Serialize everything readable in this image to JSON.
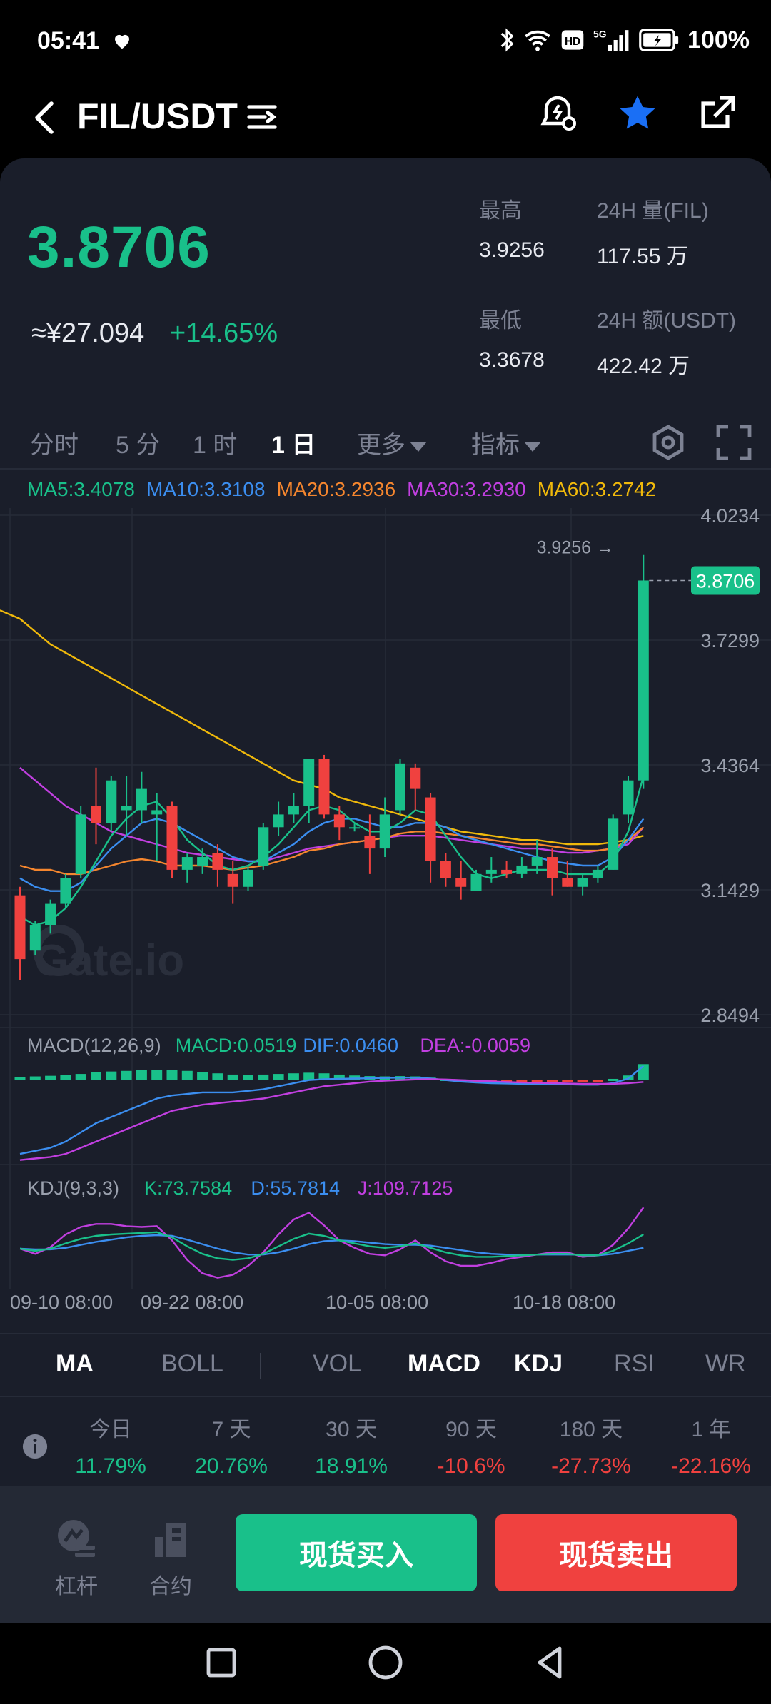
{
  "status_bar": {
    "time": "05:41",
    "battery": "100%",
    "icons": [
      "heart-icon",
      "bluetooth-icon",
      "wifi-icon",
      "hd-icon",
      "5g-signal-icon",
      "battery-icon"
    ]
  },
  "nav": {
    "title": "FIL/USDT",
    "icons": [
      "back-arrow-icon",
      "menu-lines-icon",
      "price-alert-icon",
      "favorite-star-icon",
      "share-icon"
    ],
    "star_color": "#1a6ff5"
  },
  "ticker": {
    "last_price": "3.8706",
    "cny_price": "≈¥27.094",
    "change_pct": "+14.65%",
    "high_label": "最高",
    "high_value": "3.9256",
    "vol_label": "24H 量(FIL)",
    "vol_value": "117.55 万",
    "low_label": "最低",
    "low_value": "3.3678",
    "amount_label": "24H 额(USDT)",
    "amount_value": "422.42 万"
  },
  "timeframes": {
    "tabs": [
      "分时",
      "5 分",
      "1 时",
      "1 日"
    ],
    "active": "1 日",
    "more_label": "更多",
    "indicator_label": "指标"
  },
  "ma_legend": [
    {
      "text": "MA5:3.4078",
      "color": "#19c08a"
    },
    {
      "text": "MA10:3.3108",
      "color": "#3b8ef0"
    },
    {
      "text": "MA20:3.2936",
      "color": "#f5862e"
    },
    {
      "text": "MA30:3.2930",
      "color": "#c13fe0"
    },
    {
      "text": "MA60:3.2742",
      "color": "#f0b90b"
    }
  ],
  "macd_legend": [
    {
      "text": "MACD(12,26,9)",
      "color": "#9aa0ad"
    },
    {
      "text": "MACD:0.0519",
      "color": "#19c08a"
    },
    {
      "text": "DIF:0.0460",
      "color": "#3b8ef0"
    },
    {
      "text": "DEA:-0.0059",
      "color": "#c13fe0"
    }
  ],
  "kdj_legend": [
    {
      "text": "KDJ(9,3,3)",
      "color": "#9aa0ad"
    },
    {
      "text": "K:73.7584",
      "color": "#19c08a"
    },
    {
      "text": "D:55.7814",
      "color": "#3b8ef0"
    },
    {
      "text": "J:109.7125",
      "color": "#c13fe0"
    }
  ],
  "watermark": "Gate.io",
  "chart_data": {
    "type": "candlestick",
    "y_axis_ticks": [
      "4.0234",
      "3.7299",
      "3.4364",
      "3.1429",
      "2.8494"
    ],
    "ylim": [
      2.8494,
      4.0234
    ],
    "x_axis_ticks": [
      "09-10 08:00",
      "09-22 08:00",
      "10-05 08:00",
      "10-18 08:00"
    ],
    "high_marker": "3.9256 →",
    "last_price_tag": "3.8706",
    "candles": [
      {
        "o": 3.13,
        "h": 3.15,
        "l": 2.93,
        "c": 2.98
      },
      {
        "o": 3.0,
        "h": 3.07,
        "l": 2.99,
        "c": 3.06
      },
      {
        "o": 3.06,
        "h": 3.12,
        "l": 3.04,
        "c": 3.11
      },
      {
        "o": 3.11,
        "h": 3.18,
        "l": 3.1,
        "c": 3.17
      },
      {
        "o": 3.18,
        "h": 3.34,
        "l": 3.17,
        "c": 3.32
      },
      {
        "o": 3.34,
        "h": 3.43,
        "l": 3.25,
        "c": 3.3
      },
      {
        "o": 3.3,
        "h": 3.41,
        "l": 3.28,
        "c": 3.4
      },
      {
        "o": 3.33,
        "h": 3.41,
        "l": 3.27,
        "c": 3.34
      },
      {
        "o": 3.33,
        "h": 3.42,
        "l": 3.3,
        "c": 3.38
      },
      {
        "o": 3.32,
        "h": 3.37,
        "l": 3.21,
        "c": 3.33
      },
      {
        "o": 3.34,
        "h": 3.35,
        "l": 3.17,
        "c": 3.19
      },
      {
        "o": 3.19,
        "h": 3.23,
        "l": 3.16,
        "c": 3.22
      },
      {
        "o": 3.2,
        "h": 3.24,
        "l": 3.18,
        "c": 3.22
      },
      {
        "o": 3.23,
        "h": 3.25,
        "l": 3.15,
        "c": 3.19
      },
      {
        "o": 3.18,
        "h": 3.21,
        "l": 3.11,
        "c": 3.15
      },
      {
        "o": 3.15,
        "h": 3.2,
        "l": 3.14,
        "c": 3.19
      },
      {
        "o": 3.2,
        "h": 3.3,
        "l": 3.19,
        "c": 3.29
      },
      {
        "o": 3.29,
        "h": 3.35,
        "l": 3.27,
        "c": 3.32
      },
      {
        "o": 3.32,
        "h": 3.37,
        "l": 3.3,
        "c": 3.34
      },
      {
        "o": 3.34,
        "h": 3.45,
        "l": 3.3,
        "c": 3.45
      },
      {
        "o": 3.45,
        "h": 3.46,
        "l": 3.31,
        "c": 3.32
      },
      {
        "o": 3.32,
        "h": 3.34,
        "l": 3.26,
        "c": 3.29
      },
      {
        "o": 3.29,
        "h": 3.3,
        "l": 3.28,
        "c": 3.29
      },
      {
        "o": 3.27,
        "h": 3.32,
        "l": 3.18,
        "c": 3.24
      },
      {
        "o": 3.24,
        "h": 3.36,
        "l": 3.22,
        "c": 3.32
      },
      {
        "o": 3.33,
        "h": 3.45,
        "l": 3.32,
        "c": 3.44
      },
      {
        "o": 3.43,
        "h": 3.44,
        "l": 3.33,
        "c": 3.38
      },
      {
        "o": 3.36,
        "h": 3.37,
        "l": 3.16,
        "c": 3.21
      },
      {
        "o": 3.21,
        "h": 3.23,
        "l": 3.15,
        "c": 3.17
      },
      {
        "o": 3.17,
        "h": 3.21,
        "l": 3.12,
        "c": 3.15
      },
      {
        "o": 3.14,
        "h": 3.19,
        "l": 3.14,
        "c": 3.18
      },
      {
        "o": 3.18,
        "h": 3.22,
        "l": 3.16,
        "c": 3.19
      },
      {
        "o": 3.19,
        "h": 3.21,
        "l": 3.17,
        "c": 3.18
      },
      {
        "o": 3.18,
        "h": 3.22,
        "l": 3.17,
        "c": 3.2
      },
      {
        "o": 3.2,
        "h": 3.26,
        "l": 3.18,
        "c": 3.22
      },
      {
        "o": 3.22,
        "h": 3.24,
        "l": 3.13,
        "c": 3.17
      },
      {
        "o": 3.17,
        "h": 3.21,
        "l": 3.15,
        "c": 3.15
      },
      {
        "o": 3.15,
        "h": 3.18,
        "l": 3.13,
        "c": 3.17
      },
      {
        "o": 3.17,
        "h": 3.2,
        "l": 3.16,
        "c": 3.19
      },
      {
        "o": 3.19,
        "h": 3.32,
        "l": 3.19,
        "c": 3.31
      },
      {
        "o": 3.32,
        "h": 3.41,
        "l": 3.3,
        "c": 3.4
      },
      {
        "o": 3.4,
        "h": 3.93,
        "l": 3.38,
        "c": 3.87
      }
    ],
    "ma_series": [
      {
        "name": "MA60",
        "color": "#f0b90b",
        "values": [
          3.78,
          3.75,
          3.72,
          3.7,
          3.68,
          3.66,
          3.64,
          3.62,
          3.6,
          3.58,
          3.56,
          3.54,
          3.52,
          3.5,
          3.48,
          3.46,
          3.44,
          3.42,
          3.4,
          3.39,
          3.38,
          3.36,
          3.35,
          3.34,
          3.33,
          3.32,
          3.31,
          3.3,
          3.29,
          3.28,
          3.275,
          3.27,
          3.265,
          3.26,
          3.26,
          3.255,
          3.25,
          3.25,
          3.25,
          3.255,
          3.26,
          3.27
        ]
      },
      {
        "name": "MA30",
        "color": "#c13fe0",
        "values": [
          3.43,
          3.4,
          3.37,
          3.34,
          3.32,
          3.3,
          3.28,
          3.27,
          3.26,
          3.25,
          3.24,
          3.23,
          3.225,
          3.22,
          3.215,
          3.21,
          3.21,
          3.22,
          3.23,
          3.24,
          3.245,
          3.25,
          3.255,
          3.26,
          3.265,
          3.27,
          3.27,
          3.27,
          3.265,
          3.26,
          3.255,
          3.25,
          3.245,
          3.24,
          3.24,
          3.235,
          3.23,
          3.23,
          3.235,
          3.24,
          3.25,
          3.29
        ]
      },
      {
        "name": "MA20",
        "color": "#f5862e",
        "values": [
          3.2,
          3.19,
          3.19,
          3.18,
          3.18,
          3.19,
          3.2,
          3.21,
          3.215,
          3.21,
          3.2,
          3.2,
          3.2,
          3.195,
          3.19,
          3.195,
          3.2,
          3.21,
          3.22,
          3.235,
          3.24,
          3.25,
          3.255,
          3.26,
          3.265,
          3.275,
          3.28,
          3.28,
          3.275,
          3.27,
          3.265,
          3.26,
          3.255,
          3.25,
          3.25,
          3.245,
          3.24,
          3.235,
          3.235,
          3.24,
          3.26,
          3.29
        ]
      },
      {
        "name": "MA10",
        "color": "#3b8ef0",
        "values": [
          3.17,
          3.15,
          3.14,
          3.14,
          3.16,
          3.2,
          3.24,
          3.27,
          3.3,
          3.31,
          3.3,
          3.28,
          3.26,
          3.24,
          3.22,
          3.21,
          3.21,
          3.23,
          3.25,
          3.28,
          3.3,
          3.31,
          3.31,
          3.3,
          3.29,
          3.29,
          3.3,
          3.3,
          3.29,
          3.27,
          3.26,
          3.25,
          3.24,
          3.23,
          3.22,
          3.21,
          3.205,
          3.2,
          3.2,
          3.22,
          3.26,
          3.31
        ]
      },
      {
        "name": "MA5",
        "color": "#19c08a",
        "values": [
          3.08,
          3.06,
          3.07,
          3.1,
          3.15,
          3.21,
          3.27,
          3.31,
          3.34,
          3.35,
          3.31,
          3.26,
          3.23,
          3.2,
          3.19,
          3.2,
          3.22,
          3.25,
          3.29,
          3.33,
          3.34,
          3.33,
          3.3,
          3.28,
          3.28,
          3.3,
          3.33,
          3.32,
          3.27,
          3.22,
          3.18,
          3.17,
          3.18,
          3.19,
          3.19,
          3.19,
          3.18,
          3.18,
          3.18,
          3.21,
          3.28,
          3.41
        ]
      }
    ],
    "macd_hist": [
      0.01,
      0.012,
      0.014,
      0.016,
      0.02,
      0.025,
      0.028,
      0.03,
      0.032,
      0.033,
      0.032,
      0.03,
      0.026,
      0.022,
      0.018,
      0.016,
      0.018,
      0.02,
      0.022,
      0.024,
      0.022,
      0.018,
      0.015,
      0.013,
      0.012,
      0.013,
      0.012,
      0.008,
      0.004,
      0.002,
      -0.002,
      -0.004,
      -0.004,
      -0.003,
      -0.002,
      -0.003,
      -0.004,
      -0.003,
      -0.002,
      0.004,
      0.015,
      0.052
    ],
    "dif": [
      -0.24,
      -0.23,
      -0.22,
      -0.2,
      -0.17,
      -0.14,
      -0.12,
      -0.1,
      -0.08,
      -0.06,
      -0.05,
      -0.045,
      -0.04,
      -0.04,
      -0.04,
      -0.035,
      -0.03,
      -0.02,
      -0.01,
      0.0,
      0.003,
      0.004,
      0.005,
      0.006,
      0.007,
      0.008,
      0.008,
      0.005,
      0.0,
      -0.005,
      -0.008,
      -0.01,
      -0.011,
      -0.012,
      -0.012,
      -0.013,
      -0.014,
      -0.015,
      -0.015,
      -0.01,
      0.005,
      0.046
    ],
    "dea": [
      -0.26,
      -0.255,
      -0.25,
      -0.24,
      -0.22,
      -0.2,
      -0.18,
      -0.16,
      -0.14,
      -0.12,
      -0.1,
      -0.09,
      -0.08,
      -0.075,
      -0.07,
      -0.065,
      -0.06,
      -0.05,
      -0.04,
      -0.03,
      -0.02,
      -0.015,
      -0.01,
      -0.005,
      -0.002,
      0.0,
      0.002,
      0.003,
      0.002,
      0.0,
      -0.002,
      -0.004,
      -0.006,
      -0.008,
      -0.009,
      -0.01,
      -0.011,
      -0.012,
      -0.012,
      -0.012,
      -0.01,
      -0.006
    ],
    "kdj_k": [
      55,
      52,
      55,
      62,
      68,
      72,
      74,
      75,
      76,
      77,
      70,
      58,
      48,
      42,
      40,
      42,
      48,
      58,
      68,
      75,
      72,
      66,
      62,
      58,
      56,
      58,
      62,
      56,
      50,
      46,
      44,
      44,
      45,
      46,
      47,
      48,
      48,
      46,
      46,
      52,
      62,
      74
    ],
    "kdj_d": [
      55,
      54,
      54,
      56,
      60,
      64,
      67,
      70,
      72,
      73,
      72,
      67,
      61,
      55,
      50,
      47,
      47,
      50,
      55,
      61,
      65,
      66,
      65,
      63,
      61,
      60,
      60,
      59,
      56,
      53,
      50,
      48,
      47,
      47,
      47,
      47,
      47,
      47,
      46,
      48,
      52,
      56
    ],
    "kdj_j": [
      55,
      48,
      57,
      74,
      84,
      88,
      88,
      85,
      84,
      85,
      66,
      40,
      22,
      16,
      20,
      32,
      50,
      74,
      94,
      103,
      86,
      66,
      56,
      48,
      46,
      54,
      66,
      50,
      38,
      32,
      32,
      36,
      41,
      44,
      47,
      50,
      50,
      44,
      46,
      60,
      82,
      110
    ]
  },
  "indicator_tabs": {
    "main": [
      "MA",
      "BOLL"
    ],
    "sub": [
      "VOL",
      "MACD",
      "KDJ",
      "RSI",
      "WR"
    ],
    "active": [
      "MA",
      "MACD",
      "KDJ"
    ]
  },
  "performance": [
    {
      "label": "今日",
      "value": "11.79%",
      "color": "#19c08a"
    },
    {
      "label": "7 天",
      "value": "20.76%",
      "color": "#19c08a"
    },
    {
      "label": "30 天",
      "value": "18.91%",
      "color": "#19c08a"
    },
    {
      "label": "90 天",
      "value": "-10.6%",
      "color": "#f0413f"
    },
    {
      "label": "180 天",
      "value": "-27.73%",
      "color": "#f0413f"
    },
    {
      "label": "1 年",
      "value": "-22.16%",
      "color": "#f0413f"
    }
  ],
  "actions": {
    "leverage_label": "杠杆",
    "contract_label": "合约",
    "buy_label": "现货买入",
    "sell_label": "现货卖出",
    "buy_color": "#19c08a",
    "sell_color": "#f0413f"
  },
  "system_nav": [
    "recent-apps-icon",
    "home-icon",
    "back-icon"
  ],
  "colors": {
    "up": "#19c08a",
    "down": "#f0413f",
    "background": "#1a1e2a"
  }
}
